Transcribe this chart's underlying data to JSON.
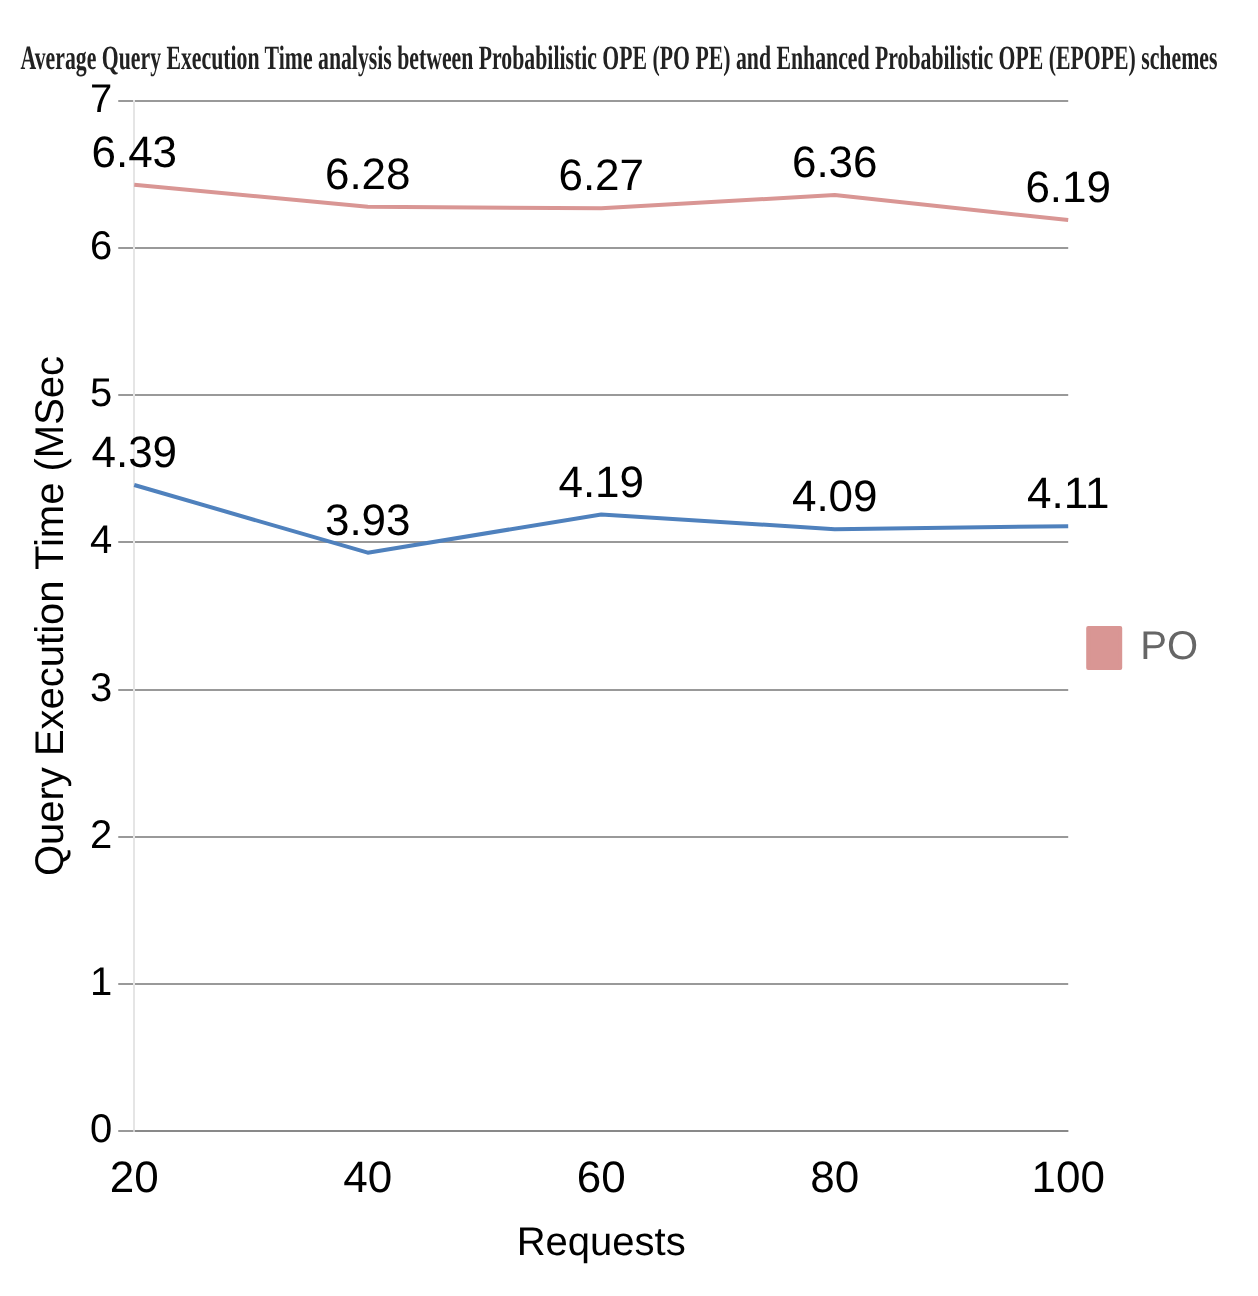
{
  "chart_data": {
    "type": "line",
    "title": "Average Query Execution Time analysis between Probabilistic OPE (PO PE) and Enhanced Probabilistic OPE (EPOPE) schemes",
    "xlabel": "Requests",
    "ylabel": "Query Execution Time (MSec",
    "categories": [
      "20",
      "40",
      "60",
      "80",
      "100"
    ],
    "series": [
      {
        "name": "PO",
        "color": "#d99694",
        "values": [
          6.43,
          6.28,
          6.27,
          6.36,
          6.19
        ]
      },
      {
        "color": "#4f81bd",
        "values": [
          4.39,
          3.93,
          4.19,
          4.09,
          4.11
        ]
      }
    ],
    "ylim": [
      0,
      7
    ],
    "yticks": [
      0,
      1,
      2,
      3,
      4,
      5,
      6,
      7
    ],
    "grid": "y",
    "legend": "right",
    "marker": "none",
    "data_labels": true
  }
}
